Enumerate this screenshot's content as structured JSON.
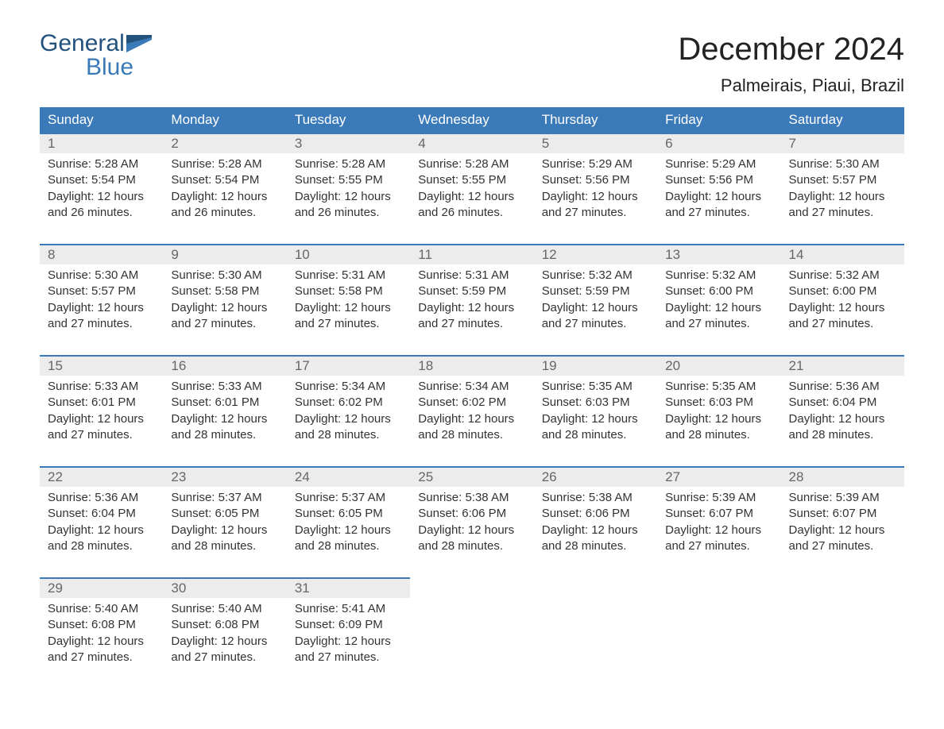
{
  "brand": {
    "word1": "General",
    "word2": "Blue"
  },
  "title": "December 2024",
  "location": "Palmeirais, Piaui, Brazil",
  "colors": {
    "header_bg": "#3b7ab8",
    "header_text": "#ffffff",
    "daynum_bg": "#ececec",
    "daynum_border": "#3b7ab8",
    "daynum_text": "#666666",
    "body_text": "#333333",
    "logo_dark": "#23527d",
    "logo_blue": "#3b7ab8",
    "page_bg": "#ffffff"
  },
  "fonts": {
    "month_title_pt": 40,
    "location_pt": 22,
    "weekday_pt": 17,
    "daynum_pt": 17,
    "cell_pt": 15,
    "logo_pt": 30
  },
  "layout": {
    "columns": 7,
    "rows": 5,
    "cell_lines": 4
  },
  "weekdays": [
    "Sunday",
    "Monday",
    "Tuesday",
    "Wednesday",
    "Thursday",
    "Friday",
    "Saturday"
  ],
  "weeks": [
    [
      {
        "n": "1",
        "sr": "Sunrise: 5:28 AM",
        "ss": "Sunset: 5:54 PM",
        "d1": "Daylight: 12 hours",
        "d2": "and 26 minutes."
      },
      {
        "n": "2",
        "sr": "Sunrise: 5:28 AM",
        "ss": "Sunset: 5:54 PM",
        "d1": "Daylight: 12 hours",
        "d2": "and 26 minutes."
      },
      {
        "n": "3",
        "sr": "Sunrise: 5:28 AM",
        "ss": "Sunset: 5:55 PM",
        "d1": "Daylight: 12 hours",
        "d2": "and 26 minutes."
      },
      {
        "n": "4",
        "sr": "Sunrise: 5:28 AM",
        "ss": "Sunset: 5:55 PM",
        "d1": "Daylight: 12 hours",
        "d2": "and 26 minutes."
      },
      {
        "n": "5",
        "sr": "Sunrise: 5:29 AM",
        "ss": "Sunset: 5:56 PM",
        "d1": "Daylight: 12 hours",
        "d2": "and 27 minutes."
      },
      {
        "n": "6",
        "sr": "Sunrise: 5:29 AM",
        "ss": "Sunset: 5:56 PM",
        "d1": "Daylight: 12 hours",
        "d2": "and 27 minutes."
      },
      {
        "n": "7",
        "sr": "Sunrise: 5:30 AM",
        "ss": "Sunset: 5:57 PM",
        "d1": "Daylight: 12 hours",
        "d2": "and 27 minutes."
      }
    ],
    [
      {
        "n": "8",
        "sr": "Sunrise: 5:30 AM",
        "ss": "Sunset: 5:57 PM",
        "d1": "Daylight: 12 hours",
        "d2": "and 27 minutes."
      },
      {
        "n": "9",
        "sr": "Sunrise: 5:30 AM",
        "ss": "Sunset: 5:58 PM",
        "d1": "Daylight: 12 hours",
        "d2": "and 27 minutes."
      },
      {
        "n": "10",
        "sr": "Sunrise: 5:31 AM",
        "ss": "Sunset: 5:58 PM",
        "d1": "Daylight: 12 hours",
        "d2": "and 27 minutes."
      },
      {
        "n": "11",
        "sr": "Sunrise: 5:31 AM",
        "ss": "Sunset: 5:59 PM",
        "d1": "Daylight: 12 hours",
        "d2": "and 27 minutes."
      },
      {
        "n": "12",
        "sr": "Sunrise: 5:32 AM",
        "ss": "Sunset: 5:59 PM",
        "d1": "Daylight: 12 hours",
        "d2": "and 27 minutes."
      },
      {
        "n": "13",
        "sr": "Sunrise: 5:32 AM",
        "ss": "Sunset: 6:00 PM",
        "d1": "Daylight: 12 hours",
        "d2": "and 27 minutes."
      },
      {
        "n": "14",
        "sr": "Sunrise: 5:32 AM",
        "ss": "Sunset: 6:00 PM",
        "d1": "Daylight: 12 hours",
        "d2": "and 27 minutes."
      }
    ],
    [
      {
        "n": "15",
        "sr": "Sunrise: 5:33 AM",
        "ss": "Sunset: 6:01 PM",
        "d1": "Daylight: 12 hours",
        "d2": "and 27 minutes."
      },
      {
        "n": "16",
        "sr": "Sunrise: 5:33 AM",
        "ss": "Sunset: 6:01 PM",
        "d1": "Daylight: 12 hours",
        "d2": "and 28 minutes."
      },
      {
        "n": "17",
        "sr": "Sunrise: 5:34 AM",
        "ss": "Sunset: 6:02 PM",
        "d1": "Daylight: 12 hours",
        "d2": "and 28 minutes."
      },
      {
        "n": "18",
        "sr": "Sunrise: 5:34 AM",
        "ss": "Sunset: 6:02 PM",
        "d1": "Daylight: 12 hours",
        "d2": "and 28 minutes."
      },
      {
        "n": "19",
        "sr": "Sunrise: 5:35 AM",
        "ss": "Sunset: 6:03 PM",
        "d1": "Daylight: 12 hours",
        "d2": "and 28 minutes."
      },
      {
        "n": "20",
        "sr": "Sunrise: 5:35 AM",
        "ss": "Sunset: 6:03 PM",
        "d1": "Daylight: 12 hours",
        "d2": "and 28 minutes."
      },
      {
        "n": "21",
        "sr": "Sunrise: 5:36 AM",
        "ss": "Sunset: 6:04 PM",
        "d1": "Daylight: 12 hours",
        "d2": "and 28 minutes."
      }
    ],
    [
      {
        "n": "22",
        "sr": "Sunrise: 5:36 AM",
        "ss": "Sunset: 6:04 PM",
        "d1": "Daylight: 12 hours",
        "d2": "and 28 minutes."
      },
      {
        "n": "23",
        "sr": "Sunrise: 5:37 AM",
        "ss": "Sunset: 6:05 PM",
        "d1": "Daylight: 12 hours",
        "d2": "and 28 minutes."
      },
      {
        "n": "24",
        "sr": "Sunrise: 5:37 AM",
        "ss": "Sunset: 6:05 PM",
        "d1": "Daylight: 12 hours",
        "d2": "and 28 minutes."
      },
      {
        "n": "25",
        "sr": "Sunrise: 5:38 AM",
        "ss": "Sunset: 6:06 PM",
        "d1": "Daylight: 12 hours",
        "d2": "and 28 minutes."
      },
      {
        "n": "26",
        "sr": "Sunrise: 5:38 AM",
        "ss": "Sunset: 6:06 PM",
        "d1": "Daylight: 12 hours",
        "d2": "and 28 minutes."
      },
      {
        "n": "27",
        "sr": "Sunrise: 5:39 AM",
        "ss": "Sunset: 6:07 PM",
        "d1": "Daylight: 12 hours",
        "d2": "and 27 minutes."
      },
      {
        "n": "28",
        "sr": "Sunrise: 5:39 AM",
        "ss": "Sunset: 6:07 PM",
        "d1": "Daylight: 12 hours",
        "d2": "and 27 minutes."
      }
    ],
    [
      {
        "n": "29",
        "sr": "Sunrise: 5:40 AM",
        "ss": "Sunset: 6:08 PM",
        "d1": "Daylight: 12 hours",
        "d2": "and 27 minutes."
      },
      {
        "n": "30",
        "sr": "Sunrise: 5:40 AM",
        "ss": "Sunset: 6:08 PM",
        "d1": "Daylight: 12 hours",
        "d2": "and 27 minutes."
      },
      {
        "n": "31",
        "sr": "Sunrise: 5:41 AM",
        "ss": "Sunset: 6:09 PM",
        "d1": "Daylight: 12 hours",
        "d2": "and 27 minutes."
      },
      null,
      null,
      null,
      null
    ]
  ]
}
